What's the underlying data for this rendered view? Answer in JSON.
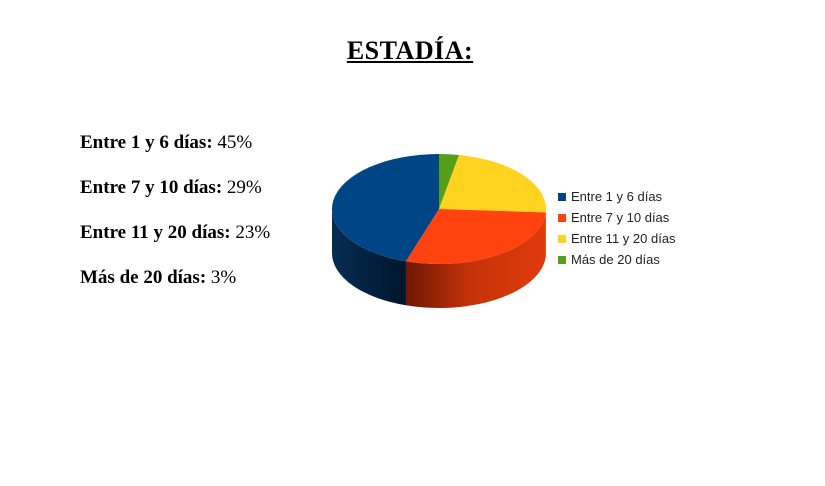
{
  "title": "ESTADÍA:",
  "stats": [
    {
      "label": "Entre 1 y 6 días:",
      "value": "45%"
    },
    {
      "label": "Entre 7 y 10 días:",
      "value": "29%"
    },
    {
      "label": "Entre 11 y 20 días:",
      "value": "23%"
    },
    {
      "label": "Más de 20 días:",
      "value": "3%"
    }
  ],
  "chart_data": {
    "type": "pie",
    "style": "3d",
    "title": "",
    "categories": [
      "Entre 1 y 6 días",
      "Entre 7 y 10 días",
      "Entre 11 y 20 días",
      "Más de 20 días"
    ],
    "values": [
      45,
      29,
      23,
      3
    ],
    "colors": [
      "#004586",
      "#ff420e",
      "#ffd320",
      "#579d1c"
    ],
    "legend_position": "right"
  }
}
